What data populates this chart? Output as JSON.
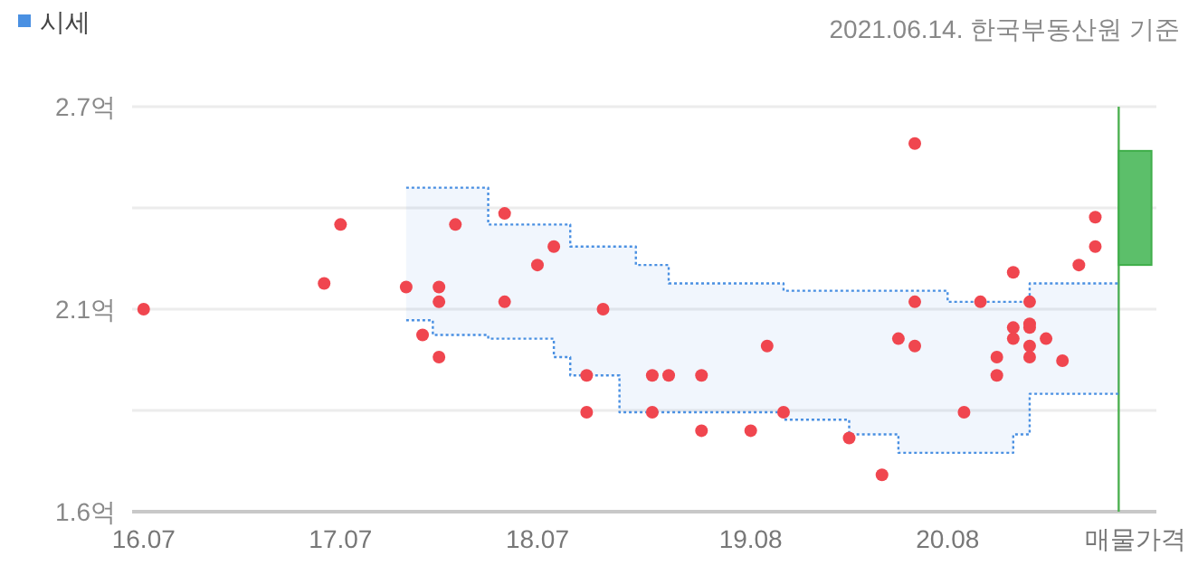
{
  "chart_data": {
    "type": "scatter",
    "legend": "top left",
    "grid": "y",
    "annotations": [
      "2021.06.14. 한국부동산원 기준"
    ],
    "xlim": [
      "2016-06-10",
      "2021-08-23"
    ],
    "xticks": [
      {
        "value": "2016-07",
        "label": "16.07"
      },
      {
        "value": "2017-07",
        "label": "17.07"
      },
      {
        "value": "2018-07",
        "label": "18.07"
      },
      {
        "value": "2019-08",
        "label": "19.08"
      },
      {
        "value": "2020-08",
        "label": "20.08"
      },
      {
        "value": "2021-07-14",
        "label": "매물가격"
      }
    ],
    "ylim": [
      1.6,
      2.7
    ],
    "yticks": [
      {
        "value": 1.6,
        "label": "1.6억"
      },
      {
        "value": 1.875,
        "label": null
      },
      {
        "value": 2.15,
        "label": "2.1억"
      },
      {
        "value": 2.425,
        "label": null
      },
      {
        "value": 2.7,
        "label": "2.7억"
      }
    ],
    "ref_lines": [
      {
        "axis": "x",
        "value": "2021-06-14",
        "label": null,
        "color": "#4cb050"
      }
    ],
    "series": [
      {
        "type": "step",
        "name": "시세",
        "color": "#4a90e2",
        "line_style": "dotted",
        "x": [
          "2017-11",
          "2017-12-20",
          "2018-04",
          "2018-08",
          "2018-09",
          "2018-12",
          "2019-01",
          "2019-03",
          "2019-10",
          "2020-02",
          "2020-05",
          "2020-08",
          "2020-12",
          "2021-01",
          "2021-06-14"
        ],
        "values": [
          2.48,
          2.48,
          2.38,
          2.38,
          2.32,
          2.32,
          2.27,
          2.22,
          2.2,
          2.2,
          2.2,
          2.17,
          2.17,
          2.22,
          2.22
        ],
        "lower": [
          2.12,
          2.08,
          2.07,
          2.02,
          1.97,
          1.87,
          1.87,
          1.87,
          1.85,
          1.81,
          1.76,
          1.76,
          1.81,
          1.92,
          1.92
        ],
        "upper": [
          2.48,
          2.48,
          2.38,
          2.38,
          2.32,
          2.32,
          2.27,
          2.22,
          2.2,
          2.2,
          2.2,
          2.17,
          2.17,
          2.22,
          2.22
        ]
      },
      {
        "type": "step",
        "color": "#4a90e2",
        "line_style": "dotted",
        "x": [
          "2017-11",
          "2017-12-20",
          "2018-04",
          "2018-08",
          "2018-09",
          "2018-12",
          "2019-01",
          "2019-03",
          "2019-10",
          "2020-02",
          "2020-05",
          "2020-08",
          "2020-12",
          "2021-01",
          "2021-06-14"
        ],
        "values": [
          2.12,
          2.08,
          2.07,
          2.02,
          1.97,
          1.87,
          1.87,
          1.87,
          1.85,
          1.81,
          1.76,
          1.76,
          1.81,
          1.92,
          1.92
        ]
      },
      {
        "color": "#f0464f",
        "marker": "circle",
        "x": [
          "2016-07",
          "2017-06",
          "2017-07",
          "2017-11",
          "2017-12",
          "2018-01",
          "2018-01",
          "2018-01",
          "2018-02",
          "2018-05",
          "2018-05",
          "2018-07",
          "2018-08",
          "2018-10",
          "2018-10",
          "2018-11",
          "2019-02",
          "2019-02",
          "2019-03",
          "2019-05",
          "2019-05",
          "2019-08",
          "2019-09",
          "2019-10",
          "2020-02",
          "2020-04",
          "2020-05",
          "2020-06",
          "2020-06",
          "2020-06",
          "2020-09",
          "2020-10",
          "2020-11",
          "2020-11",
          "2020-12",
          "2020-12",
          "2020-12",
          "2021-01",
          "2021-01",
          "2021-01",
          "2021-01",
          "2021-01",
          "2021-02",
          "2021-03",
          "2021-04",
          "2021-05",
          "2021-05"
        ],
        "values": [
          2.15,
          2.22,
          2.38,
          2.21,
          2.08,
          2.21,
          2.17,
          2.02,
          2.38,
          2.41,
          2.17,
          2.27,
          2.32,
          1.97,
          1.87,
          2.15,
          1.97,
          1.87,
          1.97,
          1.97,
          1.82,
          1.82,
          2.05,
          1.87,
          1.8,
          1.7,
          2.07,
          2.6,
          2.17,
          2.05,
          1.87,
          2.17,
          2.02,
          1.97,
          2.25,
          2.1,
          2.07,
          2.17,
          2.11,
          2.1,
          2.05,
          2.02,
          2.07,
          2.01,
          2.27,
          2.32,
          2.4
        ]
      },
      {
        "type": "bar",
        "color": "#5cbf6a",
        "x": [
          "2021-07-14"
        ],
        "base": [
          2.27
        ],
        "values": [
          0.31
        ]
      }
    ]
  }
}
